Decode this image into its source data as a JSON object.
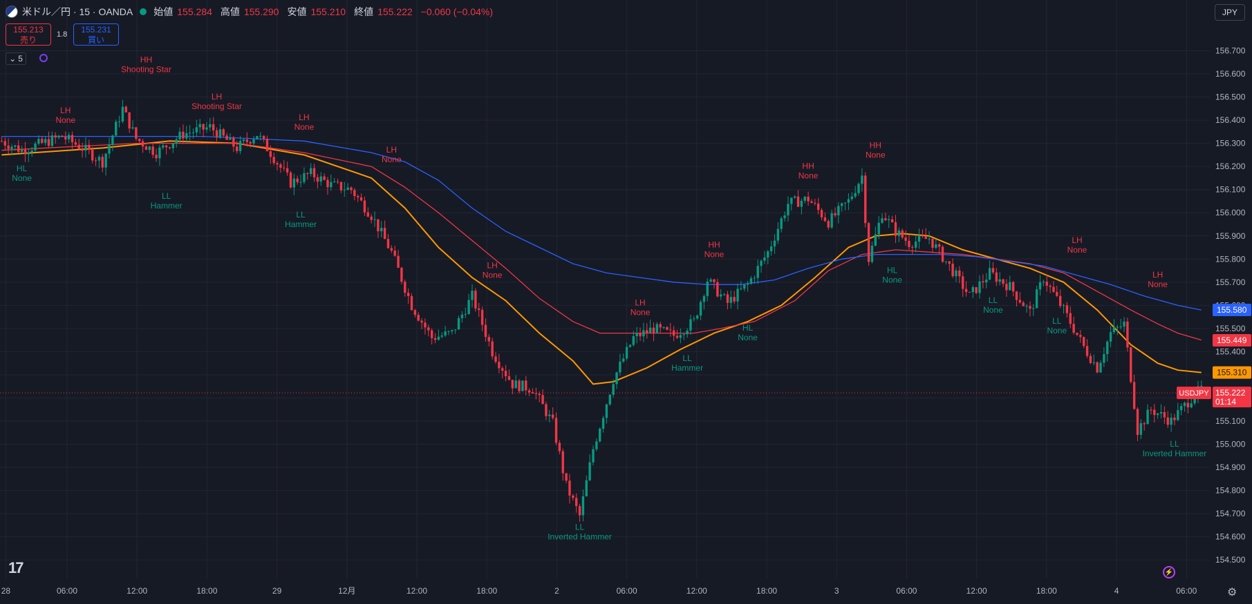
{
  "header": {
    "symbol_title": "米ドル／円 · 15 · OANDA",
    "open_label": "始値",
    "open": "155.284",
    "high_label": "高値",
    "high": "155.290",
    "low_label": "安値",
    "low": "155.210",
    "close_label": "終値",
    "close": "155.222",
    "change": "−0.060 (−0.04%)"
  },
  "trade": {
    "sell_price": "155.213",
    "sell_label": "売り",
    "spread": "1.8",
    "buy_price": "155.231",
    "buy_label": "買い"
  },
  "indicator_toggle": {
    "count": "5"
  },
  "currency_button": "JPY",
  "logo_text": "17",
  "colors": {
    "background": "#161a25",
    "grid": "#232632",
    "up": "#089981",
    "down": "#f23645",
    "ema_fast": "#ff9800",
    "ema_mid": "#f23645",
    "ema_slow": "#2962ff"
  },
  "chart_data": {
    "type": "candlestick",
    "symbol": "USDJPY",
    "ylim": [
      154.42,
      156.8
    ],
    "price_ticks": [
      "156.700",
      "156.600",
      "156.500",
      "156.400",
      "156.300",
      "156.200",
      "156.100",
      "156.000",
      "155.900",
      "155.800",
      "155.700",
      "155.600",
      "155.500",
      "155.400",
      "155.300",
      "155.200",
      "155.100",
      "155.000",
      "154.900",
      "154.800",
      "154.700",
      "154.600",
      "154.500"
    ],
    "time_ticks": [
      "28",
      "06:00",
      "12:00",
      "18:00",
      "29",
      "12月",
      "12:00",
      "18:00",
      "2",
      "06:00",
      "12:00",
      "18:00",
      "3",
      "06:00",
      "12:00",
      "18:00",
      "4",
      "06:00"
    ],
    "price_path": [
      [
        0,
        156.31
      ],
      [
        6,
        156.27
      ],
      [
        12,
        156.3
      ],
      [
        18,
        156.33
      ],
      [
        24,
        156.28
      ],
      [
        30,
        156.22
      ],
      [
        36,
        156.45
      ],
      [
        40,
        156.32
      ],
      [
        46,
        156.26
      ],
      [
        54,
        156.34
      ],
      [
        62,
        156.37
      ],
      [
        70,
        156.28
      ],
      [
        76,
        156.34
      ],
      [
        80,
        156.26
      ],
      [
        86,
        156.13
      ],
      [
        92,
        156.17
      ],
      [
        98,
        156.12
      ],
      [
        104,
        156.1
      ],
      [
        110,
        155.99
      ],
      [
        116,
        155.83
      ],
      [
        122,
        155.6
      ],
      [
        128,
        155.46
      ],
      [
        134,
        155.48
      ],
      [
        140,
        155.64
      ],
      [
        146,
        155.4
      ],
      [
        152,
        155.26
      ],
      [
        158,
        155.24
      ],
      [
        164,
        155.09
      ],
      [
        168,
        154.82
      ],
      [
        172,
        154.69
      ],
      [
        176,
        154.98
      ],
      [
        182,
        155.28
      ],
      [
        188,
        155.46
      ],
      [
        194,
        155.5
      ],
      [
        200,
        155.47
      ],
      [
        206,
        155.53
      ],
      [
        210,
        155.71
      ],
      [
        216,
        155.61
      ],
      [
        222,
        155.69
      ],
      [
        228,
        155.83
      ],
      [
        234,
        156.04
      ],
      [
        240,
        156.06
      ],
      [
        246,
        155.96
      ],
      [
        252,
        156.05
      ],
      [
        256,
        156.16
      ],
      [
        258,
        155.8
      ],
      [
        262,
        156.0
      ],
      [
        266,
        155.92
      ],
      [
        270,
        155.87
      ],
      [
        276,
        155.89
      ],
      [
        282,
        155.77
      ],
      [
        288,
        155.64
      ],
      [
        294,
        155.74
      ],
      [
        300,
        155.68
      ],
      [
        306,
        155.57
      ],
      [
        310,
        155.72
      ],
      [
        316,
        155.58
      ],
      [
        322,
        155.42
      ],
      [
        326,
        155.33
      ],
      [
        330,
        155.48
      ],
      [
        334,
        155.52
      ],
      [
        338,
        155.06
      ],
      [
        342,
        155.15
      ],
      [
        348,
        155.1
      ],
      [
        354,
        155.2
      ],
      [
        357,
        155.24
      ]
    ],
    "series": [
      {
        "name": "",
        "kind": "ema_fast",
        "points": [
          [
            0,
            156.25
          ],
          [
            30,
            156.28
          ],
          [
            50,
            156.31
          ],
          [
            70,
            156.3
          ],
          [
            90,
            156.25
          ],
          [
            110,
            156.15
          ],
          [
            120,
            156.02
          ],
          [
            130,
            155.85
          ],
          [
            140,
            155.72
          ],
          [
            150,
            155.62
          ],
          [
            160,
            155.48
          ],
          [
            170,
            155.36
          ],
          [
            176,
            155.26
          ],
          [
            182,
            155.27
          ],
          [
            192,
            155.33
          ],
          [
            202,
            155.41
          ],
          [
            212,
            155.48
          ],
          [
            222,
            155.53
          ],
          [
            232,
            155.6
          ],
          [
            242,
            155.72
          ],
          [
            252,
            155.85
          ],
          [
            260,
            155.9
          ],
          [
            268,
            155.91
          ],
          [
            276,
            155.9
          ],
          [
            286,
            155.84
          ],
          [
            296,
            155.8
          ],
          [
            306,
            155.76
          ],
          [
            316,
            155.7
          ],
          [
            326,
            155.58
          ],
          [
            336,
            155.43
          ],
          [
            344,
            155.35
          ],
          [
            350,
            155.32
          ],
          [
            357,
            155.31
          ]
        ]
      },
      {
        "name": "",
        "kind": "ema_mid",
        "points": [
          [
            0,
            156.27
          ],
          [
            40,
            156.3
          ],
          [
            70,
            156.3
          ],
          [
            90,
            156.26
          ],
          [
            110,
            156.2
          ],
          [
            120,
            156.11
          ],
          [
            130,
            156.0
          ],
          [
            140,
            155.88
          ],
          [
            150,
            155.76
          ],
          [
            160,
            155.63
          ],
          [
            170,
            155.53
          ],
          [
            178,
            155.48
          ],
          [
            186,
            155.48
          ],
          [
            196,
            155.48
          ],
          [
            206,
            155.48
          ],
          [
            214,
            155.5
          ],
          [
            224,
            155.53
          ],
          [
            236,
            155.62
          ],
          [
            246,
            155.75
          ],
          [
            256,
            155.82
          ],
          [
            266,
            155.84
          ],
          [
            276,
            155.83
          ],
          [
            286,
            155.82
          ],
          [
            296,
            155.8
          ],
          [
            306,
            155.78
          ],
          [
            316,
            155.74
          ],
          [
            326,
            155.66
          ],
          [
            336,
            155.58
          ],
          [
            344,
            155.52
          ],
          [
            350,
            155.48
          ],
          [
            357,
            155.45
          ]
        ]
      },
      {
        "name": "",
        "kind": "ema_slow",
        "points": [
          [
            0,
            156.33
          ],
          [
            60,
            156.33
          ],
          [
            90,
            156.31
          ],
          [
            110,
            156.26
          ],
          [
            120,
            156.22
          ],
          [
            130,
            156.14
          ],
          [
            140,
            156.02
          ],
          [
            150,
            155.92
          ],
          [
            160,
            155.85
          ],
          [
            170,
            155.78
          ],
          [
            180,
            155.74
          ],
          [
            190,
            155.72
          ],
          [
            200,
            155.7
          ],
          [
            210,
            155.69
          ],
          [
            220,
            155.69
          ],
          [
            230,
            155.71
          ],
          [
            240,
            155.76
          ],
          [
            250,
            155.8
          ],
          [
            260,
            155.82
          ],
          [
            270,
            155.82
          ],
          [
            280,
            155.82
          ],
          [
            290,
            155.81
          ],
          [
            300,
            155.79
          ],
          [
            310,
            155.77
          ],
          [
            320,
            155.73
          ],
          [
            330,
            155.69
          ],
          [
            340,
            155.64
          ],
          [
            350,
            155.6
          ],
          [
            357,
            155.58
          ]
        ]
      }
    ],
    "badges": [
      {
        "text": "155.580",
        "kind": "ema_slow",
        "price": 155.58
      },
      {
        "text": "155.449",
        "kind": "ema_mid",
        "price": 155.449
      },
      {
        "text": "155.310",
        "kind": "ema_fast",
        "price": 155.31
      },
      {
        "text": "155.222",
        "sub": "01:14",
        "kind": "last",
        "price": 155.222,
        "tag": "USDJPY"
      }
    ],
    "swing_labels": [
      {
        "bar": 6,
        "price": 156.18,
        "type": "HL",
        "pattern": "None",
        "kind": "low"
      },
      {
        "bar": 19,
        "price": 156.43,
        "type": "LH",
        "pattern": "None",
        "kind": "high"
      },
      {
        "bar": 43,
        "price": 156.65,
        "type": "HH",
        "pattern": "Shooting Star",
        "kind": "high"
      },
      {
        "bar": 49,
        "price": 156.06,
        "type": "LL",
        "pattern": "Hammer",
        "kind": "low"
      },
      {
        "bar": 64,
        "price": 156.49,
        "type": "LH",
        "pattern": "Shooting Star",
        "kind": "high"
      },
      {
        "bar": 90,
        "price": 156.4,
        "type": "LH",
        "pattern": "None",
        "kind": "high"
      },
      {
        "bar": 89,
        "price": 155.98,
        "type": "LL",
        "pattern": "Hammer",
        "kind": "low"
      },
      {
        "bar": 116,
        "price": 156.26,
        "type": "LH",
        "pattern": "None",
        "kind": "high"
      },
      {
        "bar": 146,
        "price": 155.76,
        "type": "LH",
        "pattern": "None",
        "kind": "high"
      },
      {
        "bar": 172,
        "price": 154.63,
        "type": "LL",
        "pattern": "Inverted Hammer",
        "kind": "low"
      },
      {
        "bar": 190,
        "price": 155.6,
        "type": "LH",
        "pattern": "None",
        "kind": "high"
      },
      {
        "bar": 204,
        "price": 155.36,
        "type": "LL",
        "pattern": "Hammer",
        "kind": "low"
      },
      {
        "bar": 212,
        "price": 155.85,
        "type": "HH",
        "pattern": "None",
        "kind": "high"
      },
      {
        "bar": 222,
        "price": 155.49,
        "type": "HL",
        "pattern": "None",
        "kind": "low"
      },
      {
        "bar": 240,
        "price": 156.19,
        "type": "HH",
        "pattern": "None",
        "kind": "high"
      },
      {
        "bar": 260,
        "price": 156.28,
        "type": "HH",
        "pattern": "None",
        "kind": "high"
      },
      {
        "bar": 265,
        "price": 155.74,
        "type": "HL",
        "pattern": "None",
        "kind": "low"
      },
      {
        "bar": 295,
        "price": 155.61,
        "type": "LL",
        "pattern": "None",
        "kind": "low"
      },
      {
        "bar": 320,
        "price": 155.87,
        "type": "LH",
        "pattern": "None",
        "kind": "high"
      },
      {
        "bar": 314,
        "price": 155.52,
        "type": "LL",
        "pattern": "None",
        "kind": "low"
      },
      {
        "bar": 344,
        "price": 155.72,
        "type": "LH",
        "pattern": "None",
        "kind": "high"
      },
      {
        "bar": 349,
        "price": 154.99,
        "type": "LL",
        "pattern": "Inverted Hammer",
        "kind": "low"
      }
    ]
  }
}
